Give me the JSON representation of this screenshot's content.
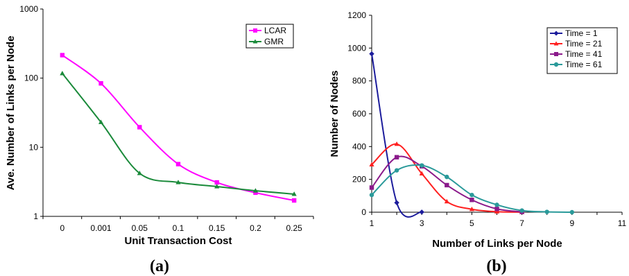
{
  "chart_data": [
    {
      "type": "line",
      "panel_label": "(a)",
      "xlabel": "Unit Transaction Cost",
      "ylabel": "Ave. Number of Links per Node",
      "categories": [
        "0",
        "0.001",
        "0.05",
        "0.1",
        "0.15",
        "0.2",
        "0.25"
      ],
      "y_scale": "log",
      "ylim": [
        1,
        1000
      ],
      "y_ticks": [
        "1",
        "10",
        "100",
        "1000"
      ],
      "legend_position": "top-right",
      "series": [
        {
          "name": "LCAR",
          "color": "#ff00ff",
          "marker": "square",
          "values": [
            215,
            84,
            19.5,
            5.7,
            3.1,
            2.2,
            1.7
          ]
        },
        {
          "name": "GMR",
          "color": "#1a8a3a",
          "marker": "triangle",
          "values": [
            117,
            23,
            4.2,
            3.1,
            2.7,
            2.35,
            2.1
          ]
        }
      ]
    },
    {
      "type": "line",
      "panel_label": "(b)",
      "xlabel": "Number of Links per Node",
      "ylabel": "Number of Nodes",
      "xlim": [
        1,
        11
      ],
      "x_ticks": [
        1,
        3,
        5,
        7,
        9,
        11
      ],
      "ylim": [
        0,
        1200
      ],
      "y_ticks": [
        0,
        200,
        400,
        600,
        800,
        1000,
        1200
      ],
      "legend_position": "top-right",
      "series": [
        {
          "name": "Time = 1",
          "color": "#1c1c9c",
          "marker": "diamond",
          "x": [
            1,
            2,
            3
          ],
          "values": [
            965,
            58,
            1
          ]
        },
        {
          "name": "Time = 21",
          "color": "#ff2020",
          "marker": "triangle",
          "x": [
            1,
            2,
            3,
            4,
            5,
            6,
            7
          ],
          "values": [
            290,
            415,
            235,
            65,
            18,
            3,
            0
          ]
        },
        {
          "name": "Time = 41",
          "color": "#8b1a8b",
          "marker": "square",
          "x": [
            1,
            2,
            3,
            4,
            5,
            6,
            7
          ],
          "values": [
            150,
            335,
            280,
            165,
            75,
            20,
            2
          ]
        },
        {
          "name": "Time = 61",
          "color": "#2a9a9a",
          "marker": "circle",
          "x": [
            1,
            2,
            3,
            4,
            5,
            6,
            7,
            8,
            9
          ],
          "values": [
            105,
            255,
            285,
            215,
            105,
            45,
            10,
            2,
            0
          ]
        }
      ]
    }
  ]
}
